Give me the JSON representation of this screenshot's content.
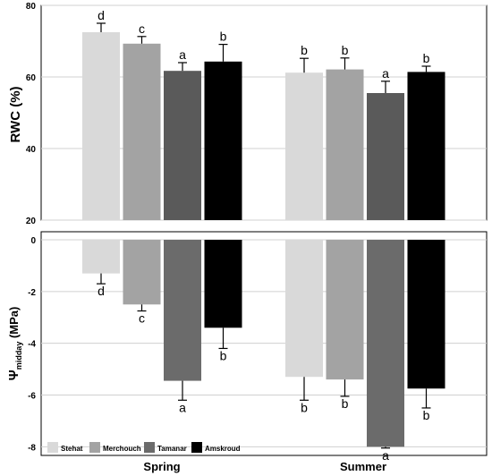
{
  "chart_data": [
    {
      "type": "bar",
      "ylabel": "RWC (%)",
      "ylim": [
        20,
        80
      ],
      "yticks": [
        "20",
        "40",
        "60",
        "80"
      ],
      "grid": true,
      "categories": [
        "Spring",
        "Summer"
      ],
      "series": [
        {
          "name": "Stehat",
          "values": [
            72.5,
            61.2
          ],
          "errors": [
            2.5,
            4.0
          ],
          "letters": [
            "d",
            "b"
          ]
        },
        {
          "name": "Merchouch",
          "values": [
            69.3,
            62.1
          ],
          "errors": [
            2.0,
            3.2
          ],
          "letters": [
            "c",
            "b"
          ]
        },
        {
          "name": "Tamanar",
          "values": [
            61.7,
            55.5
          ],
          "errors": [
            2.3,
            3.3
          ],
          "letters": [
            "a",
            "a"
          ]
        },
        {
          "name": "Amskroud",
          "values": [
            64.3,
            61.4
          ],
          "errors": [
            4.8,
            1.6
          ],
          "letters": [
            "b",
            "b"
          ]
        }
      ]
    },
    {
      "type": "bar",
      "ylabel_main": "Ψ",
      "ylabel_sub": "midday",
      "ylabel_unit": " (MPa)",
      "ylim": [
        -8.3,
        0
      ],
      "yticks": [
        "0",
        "-2",
        "-4",
        "-6",
        "-8"
      ],
      "grid": true,
      "categories": [
        "Spring",
        "Summer"
      ],
      "legend_position": "bottom-left",
      "series": [
        {
          "name": "Stehat",
          "values": [
            -1.3,
            -5.3
          ],
          "errors": [
            0.4,
            0.9
          ],
          "letters": [
            "d",
            "b"
          ]
        },
        {
          "name": "Merchouch",
          "values": [
            -2.5,
            -5.4
          ],
          "errors": [
            0.25,
            0.65
          ],
          "letters": [
            "c",
            "b"
          ]
        },
        {
          "name": "Tamanar",
          "values": [
            -5.45,
            -8.0
          ],
          "errors": [
            0.75,
            0.05
          ],
          "letters": [
            "a",
            "a"
          ]
        },
        {
          "name": "Amskroud",
          "values": [
            -3.4,
            -5.75
          ],
          "errors": [
            0.8,
            0.75
          ],
          "letters": [
            "b",
            "b"
          ]
        }
      ]
    }
  ],
  "colors": {
    "series": [
      "#d9d9d9",
      "#a3a3a3",
      "#5a5a5a",
      "#000000"
    ],
    "series_lower": [
      "#d9d9d9",
      "#a3a3a3",
      "#6b6b6b",
      "#000000"
    ],
    "grid": "#d0d0d0",
    "axis": "#000000"
  }
}
